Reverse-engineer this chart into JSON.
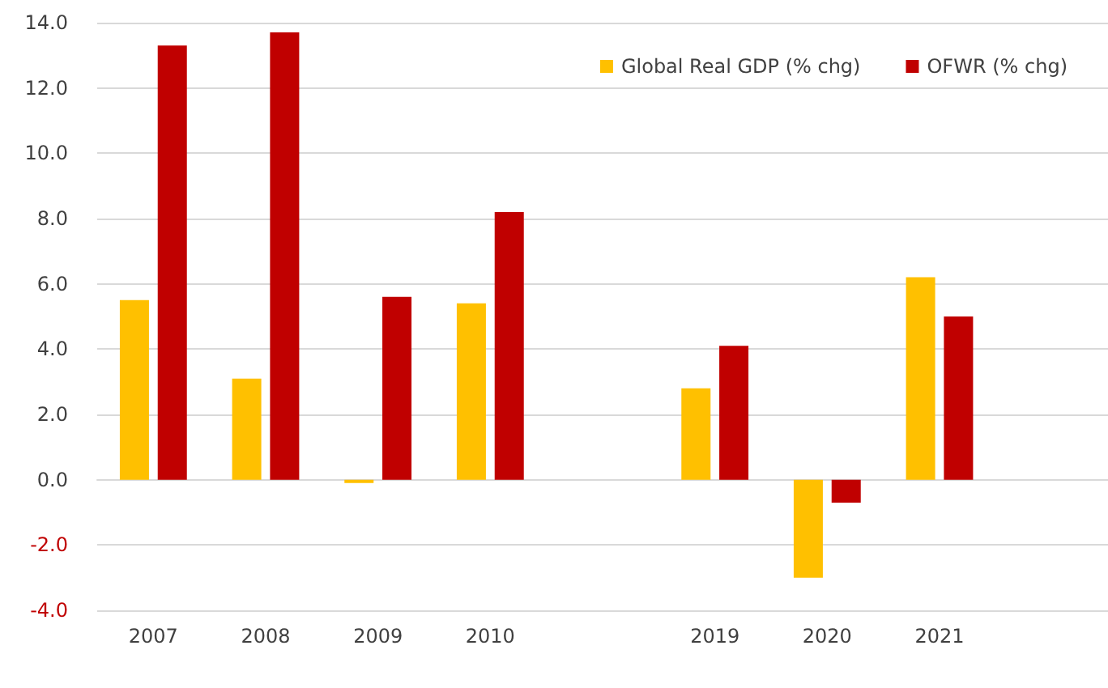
{
  "chart_data": {
    "type": "bar",
    "categories": [
      "2007",
      "2008",
      "2009",
      "2010",
      null,
      "2019",
      "2020",
      "2021"
    ],
    "series": [
      {
        "name": "Global Real GDP (% chg)",
        "color": "#ffc000",
        "values": [
          5.5,
          3.1,
          -0.1,
          5.4,
          null,
          2.8,
          -3.0,
          6.2
        ]
      },
      {
        "name": "OFWR (% chg)",
        "color": "#c00000",
        "values": [
          13.3,
          13.7,
          5.6,
          8.2,
          null,
          4.1,
          -0.7,
          5.0
        ]
      }
    ],
    "ylim": [
      -4,
      14
    ],
    "yticks": [
      {
        "value": -4,
        "label": "-4.0"
      },
      {
        "value": -2,
        "label": "-2.0"
      },
      {
        "value": 0,
        "label": "0.0"
      },
      {
        "value": 2,
        "label": "2.0"
      },
      {
        "value": 4,
        "label": "4.0"
      },
      {
        "value": 6,
        "label": "6.0"
      },
      {
        "value": 8,
        "label": "8.0"
      },
      {
        "value": 10,
        "label": "10.0"
      },
      {
        "value": 12,
        "label": "12.0"
      },
      {
        "value": 14,
        "label": "14.0"
      }
    ],
    "grid": "y",
    "legend": "top right"
  }
}
